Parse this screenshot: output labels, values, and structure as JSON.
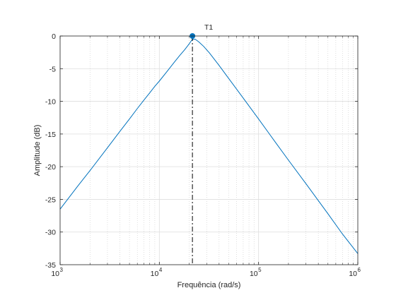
{
  "chart_data": {
    "type": "line",
    "title": "",
    "xlabel": "Frequência  (rad/s)",
    "ylabel": "Amplitude (dB)",
    "x_scale": "log",
    "xlim": [
      1000,
      1000000
    ],
    "ylim": [
      -35,
      0
    ],
    "grid": true,
    "minor_grid": true,
    "x_ticks": [
      {
        "base": "10",
        "exp": "3",
        "value": 1000
      },
      {
        "base": "10",
        "exp": "4",
        "value": 10000
      },
      {
        "base": "10",
        "exp": "5",
        "value": 100000
      },
      {
        "base": "10",
        "exp": "6",
        "value": 1000000
      }
    ],
    "y_ticks": [
      {
        "label": "0",
        "value": 0
      },
      {
        "label": "-5",
        "value": -5
      },
      {
        "label": "-10",
        "value": -10
      },
      {
        "label": "-15",
        "value": -15
      },
      {
        "label": "-20",
        "value": -20
      },
      {
        "label": "-25",
        "value": -25
      },
      {
        "label": "-30",
        "value": -30
      },
      {
        "label": "-35",
        "value": -35
      }
    ],
    "series": [
      {
        "color": "#0072BD",
        "x": [
          1000,
          1500,
          2000,
          3000,
          4000,
          5000,
          6000,
          7000,
          8000,
          9000,
          10000,
          12000,
          14000,
          16000,
          18000,
          20000,
          21500,
          23000,
          25000,
          28000,
          32000,
          40000,
          50000,
          70000,
          100000,
          150000,
          200000,
          300000,
          500000,
          700000,
          1000000
        ],
        "y": [
          -26.5,
          -23.0,
          -20.6,
          -17.1,
          -14.6,
          -12.7,
          -11.1,
          -9.8,
          -8.7,
          -7.7,
          -6.9,
          -5.4,
          -4.1,
          -3.0,
          -2.1,
          -1.2,
          -0.5,
          -0.5,
          -0.9,
          -1.6,
          -2.6,
          -4.5,
          -6.5,
          -9.5,
          -12.7,
          -16.4,
          -19.0,
          -22.6,
          -27.2,
          -30.3,
          -33.3
        ]
      }
    ],
    "marker": {
      "label": "T1",
      "x": 21544,
      "y": 0,
      "color": "#0072BD"
    },
    "vline": {
      "x": 21544,
      "style": "dash-dot",
      "color": "#000000"
    }
  }
}
